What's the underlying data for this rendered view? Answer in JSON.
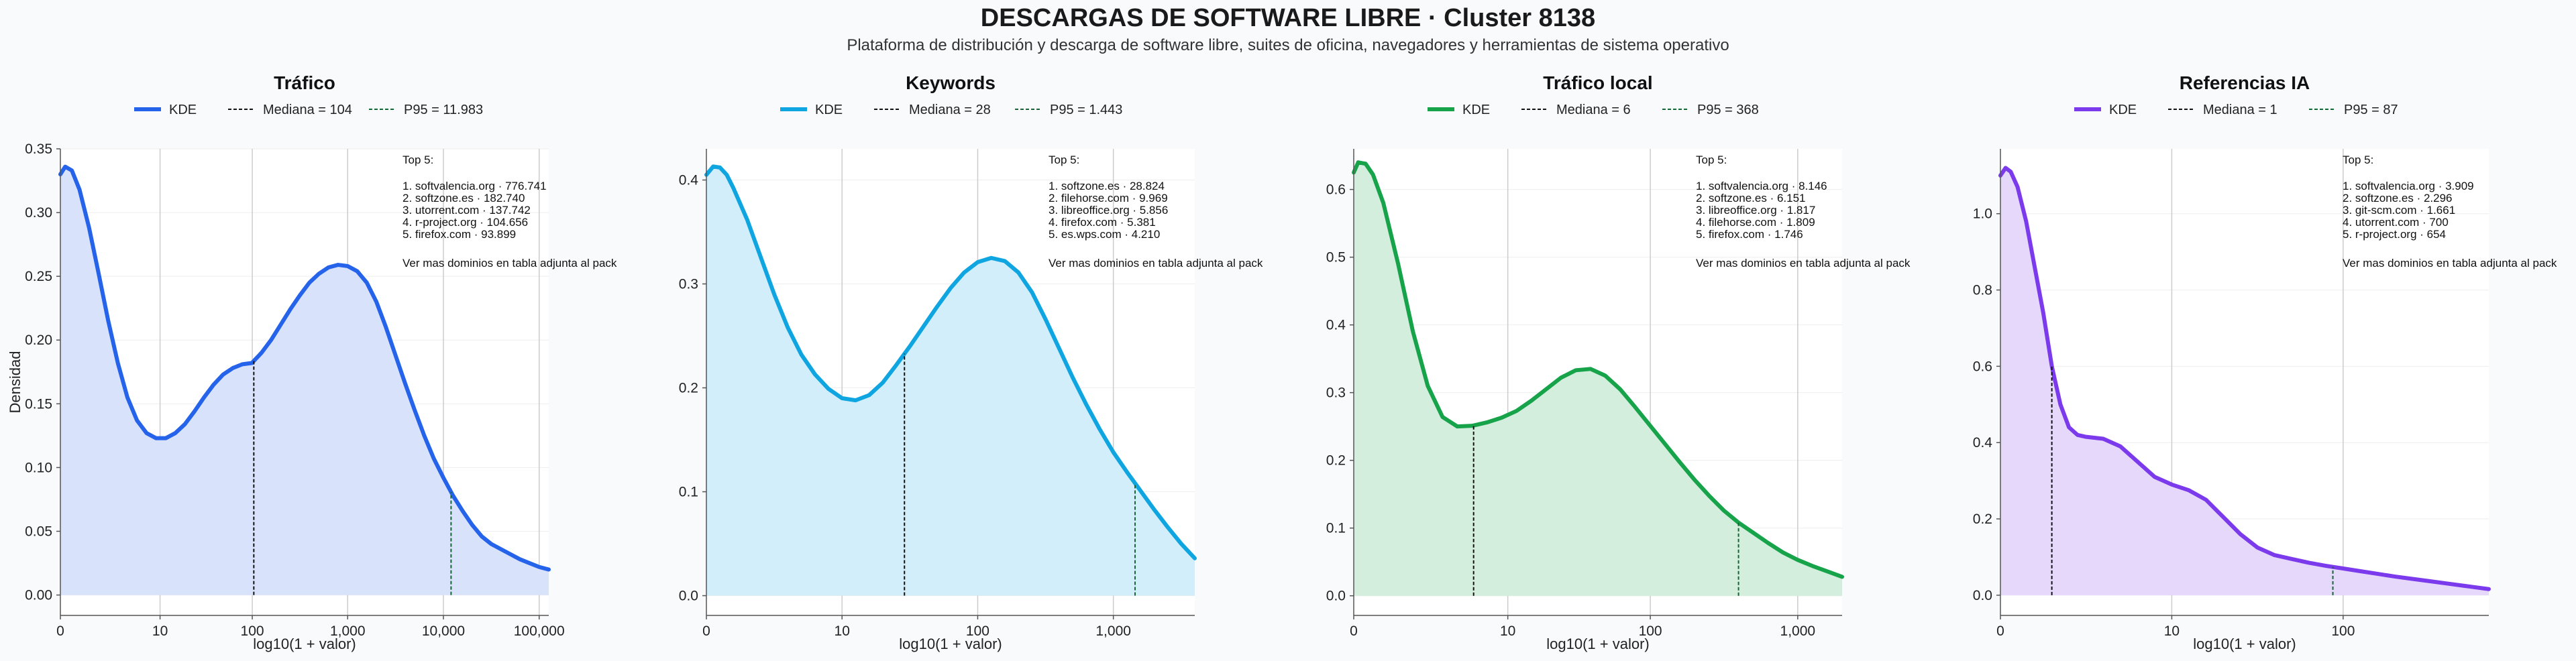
{
  "title": "DESCARGAS DE SOFTWARE LIBRE · Cluster 8138",
  "subtitle": "Plataforma de distribución y descarga de software libre, suites de oficina, navegadores y herramientas de sistema operativo",
  "ylabel": "Densidad",
  "legend_kde": "KDE",
  "note": "Ver mas dominios en tabla adjunta al pack",
  "top_label": "Top 5:",
  "chart_data": [
    {
      "type": "area",
      "title": "Tráfico",
      "xlabel": "log10(1 + valor)",
      "ylabel": "Densidad",
      "color": "#2563eb",
      "fill": "#d8e2fb",
      "xlim": [
        0,
        5.1
      ],
      "ylim": [
        -0.016,
        0.35
      ],
      "x_ticks": [
        {
          "v": 0,
          "label": "0"
        },
        {
          "v": 1.041,
          "label": "10"
        },
        {
          "v": 2.004,
          "label": "100"
        },
        {
          "v": 3.0,
          "label": "1,000"
        },
        {
          "v": 4.0,
          "label": "10,000"
        },
        {
          "v": 5.0,
          "label": "100,000"
        }
      ],
      "y_ticks": [
        {
          "v": 0,
          "label": "0.00"
        },
        {
          "v": 0.05,
          "label": "0.05"
        },
        {
          "v": 0.1,
          "label": "0.10"
        },
        {
          "v": 0.15,
          "label": "0.15"
        },
        {
          "v": 0.2,
          "label": "0.20"
        },
        {
          "v": 0.25,
          "label": "0.25"
        },
        {
          "v": 0.3,
          "label": "0.30"
        },
        {
          "v": 0.35,
          "label": "0.35"
        }
      ],
      "x": [
        0,
        0.05,
        0.12,
        0.2,
        0.3,
        0.4,
        0.5,
        0.6,
        0.7,
        0.8,
        0.9,
        1.0,
        1.1,
        1.2,
        1.3,
        1.4,
        1.5,
        1.6,
        1.7,
        1.8,
        1.9,
        2.0,
        2.1,
        2.2,
        2.3,
        2.4,
        2.5,
        2.6,
        2.7,
        2.8,
        2.9,
        3.0,
        3.1,
        3.2,
        3.3,
        3.4,
        3.5,
        3.6,
        3.7,
        3.8,
        3.9,
        4.0,
        4.1,
        4.2,
        4.3,
        4.4,
        4.5,
        4.6,
        4.7,
        4.8,
        4.9,
        5.0,
        5.1
      ],
      "y": [
        0.33,
        0.336,
        0.333,
        0.318,
        0.288,
        0.252,
        0.215,
        0.182,
        0.155,
        0.137,
        0.127,
        0.123,
        0.123,
        0.127,
        0.134,
        0.144,
        0.155,
        0.165,
        0.173,
        0.178,
        0.181,
        0.182,
        0.19,
        0.2,
        0.212,
        0.224,
        0.235,
        0.245,
        0.252,
        0.257,
        0.259,
        0.258,
        0.254,
        0.245,
        0.23,
        0.21,
        0.188,
        0.166,
        0.145,
        0.125,
        0.107,
        0.092,
        0.078,
        0.066,
        0.055,
        0.046,
        0.04,
        0.036,
        0.032,
        0.028,
        0.025,
        0.022,
        0.02
      ],
      "median": {
        "label": "Mediana = 104",
        "x": 2.02
      },
      "p95": {
        "label": "P95 = 11.983",
        "x": 4.08
      },
      "top5": [
        "1. softvalencia.org · 776.741",
        "2. softzone.es · 182.740",
        "3. utorrent.com · 137.742",
        "4. r-project.org · 104.656",
        "5. firefox.com · 93.899"
      ]
    },
    {
      "type": "area",
      "title": "Keywords",
      "xlabel": "log10(1 + valor)",
      "ylabel": "",
      "color": "#0ea5e0",
      "fill": "#d2eefb",
      "xlim": [
        0,
        3.6
      ],
      "ylim": [
        -0.019,
        0.43
      ],
      "x_ticks": [
        {
          "v": 0,
          "label": "0"
        },
        {
          "v": 1.0,
          "label": "10"
        },
        {
          "v": 2.0,
          "label": "100"
        },
        {
          "v": 3.0,
          "label": "1,000"
        }
      ],
      "y_ticks": [
        {
          "v": 0,
          "label": "0.0"
        },
        {
          "v": 0.1,
          "label": "0.1"
        },
        {
          "v": 0.2,
          "label": "0.2"
        },
        {
          "v": 0.3,
          "label": "0.3"
        },
        {
          "v": 0.4,
          "label": "0.4"
        }
      ],
      "x": [
        0,
        0.05,
        0.1,
        0.15,
        0.2,
        0.3,
        0.4,
        0.5,
        0.6,
        0.7,
        0.8,
        0.9,
        1.0,
        1.1,
        1.2,
        1.3,
        1.4,
        1.5,
        1.6,
        1.7,
        1.8,
        1.9,
        2.0,
        2.1,
        2.2,
        2.3,
        2.4,
        2.5,
        2.6,
        2.7,
        2.8,
        2.9,
        3.0,
        3.1,
        3.2,
        3.3,
        3.4,
        3.5,
        3.6
      ],
      "y": [
        0.405,
        0.413,
        0.412,
        0.405,
        0.392,
        0.362,
        0.326,
        0.29,
        0.258,
        0.232,
        0.213,
        0.199,
        0.19,
        0.188,
        0.193,
        0.205,
        0.222,
        0.24,
        0.259,
        0.278,
        0.296,
        0.311,
        0.321,
        0.325,
        0.322,
        0.311,
        0.292,
        0.266,
        0.238,
        0.21,
        0.184,
        0.16,
        0.138,
        0.119,
        0.101,
        0.083,
        0.066,
        0.05,
        0.036
      ],
      "median": {
        "label": "Mediana = 28",
        "x": 1.46
      },
      "p95": {
        "label": "P95 = 1.443",
        "x": 3.16
      },
      "top5": [
        "1. softzone.es · 28.824",
        "2. filehorse.com · 9.969",
        "3. libreoffice.org · 5.856",
        "4. firefox.com · 5.381",
        "5. es.wps.com · 4.210"
      ]
    },
    {
      "type": "area",
      "title": "Tráfico local",
      "xlabel": "log10(1 + valor)",
      "ylabel": "",
      "color": "#16a34a",
      "fill": "#d3eedd",
      "xlim": [
        0,
        3.3
      ],
      "ylim": [
        -0.029,
        0.66
      ],
      "x_ticks": [
        {
          "v": 0,
          "label": "0"
        },
        {
          "v": 1.041,
          "label": "10"
        },
        {
          "v": 2.004,
          "label": "100"
        },
        {
          "v": 3.0,
          "label": "1,000"
        }
      ],
      "y_ticks": [
        {
          "v": 0,
          "label": "0.0"
        },
        {
          "v": 0.1,
          "label": "0.1"
        },
        {
          "v": 0.2,
          "label": "0.2"
        },
        {
          "v": 0.3,
          "label": "0.3"
        },
        {
          "v": 0.4,
          "label": "0.4"
        },
        {
          "v": 0.5,
          "label": "0.5"
        },
        {
          "v": 0.6,
          "label": "0.6"
        }
      ],
      "x": [
        0,
        0.03,
        0.08,
        0.13,
        0.2,
        0.3,
        0.4,
        0.5,
        0.6,
        0.7,
        0.8,
        0.9,
        1.0,
        1.1,
        1.2,
        1.3,
        1.4,
        1.5,
        1.6,
        1.7,
        1.8,
        1.9,
        2.0,
        2.1,
        2.2,
        2.3,
        2.4,
        2.5,
        2.6,
        2.7,
        2.8,
        2.9,
        3.0,
        3.1,
        3.2,
        3.3
      ],
      "y": [
        0.625,
        0.64,
        0.638,
        0.622,
        0.58,
        0.49,
        0.39,
        0.31,
        0.264,
        0.25,
        0.251,
        0.256,
        0.263,
        0.273,
        0.288,
        0.305,
        0.322,
        0.333,
        0.335,
        0.325,
        0.305,
        0.279,
        0.252,
        0.225,
        0.198,
        0.172,
        0.148,
        0.126,
        0.108,
        0.093,
        0.078,
        0.064,
        0.053,
        0.044,
        0.036,
        0.028
      ],
      "median": {
        "label": "Mediana = 6",
        "x": 0.81
      },
      "p95": {
        "label": "P95 = 368",
        "x": 2.6
      },
      "top5": [
        "1. softvalencia.org · 8.146",
        "2. softzone.es · 6.151",
        "3. libreoffice.org · 1.817",
        "4. filehorse.com · 1.809",
        "5. firefox.com · 1.746"
      ]
    },
    {
      "type": "area",
      "title": "Referencias IA",
      "xlabel": "log10(1 + valor)",
      "ylabel": "",
      "color": "#7c3aed",
      "fill": "#e6d8fb",
      "xlim": [
        0,
        2.85
      ],
      "ylim": [
        -0.053,
        1.17
      ],
      "x_ticks": [
        {
          "v": 0,
          "label": "0"
        },
        {
          "v": 1.0,
          "label": "10"
        },
        {
          "v": 2.0,
          "label": "100"
        }
      ],
      "y_ticks": [
        {
          "v": 0,
          "label": "0.0"
        },
        {
          "v": 0.2,
          "label": "0.2"
        },
        {
          "v": 0.4,
          "label": "0.4"
        },
        {
          "v": 0.6,
          "label": "0.6"
        },
        {
          "v": 0.8,
          "label": "0.8"
        },
        {
          "v": 1.0,
          "label": "1.0"
        }
      ],
      "x": [
        0,
        0.03,
        0.06,
        0.1,
        0.15,
        0.2,
        0.25,
        0.3,
        0.35,
        0.4,
        0.45,
        0.5,
        0.6,
        0.7,
        0.8,
        0.9,
        1.0,
        1.1,
        1.2,
        1.3,
        1.4,
        1.5,
        1.6,
        1.7,
        1.8,
        1.9,
        2.0,
        2.1,
        2.2,
        2.3,
        2.4,
        2.5,
        2.6,
        2.7,
        2.85
      ],
      "y": [
        1.1,
        1.12,
        1.11,
        1.07,
        0.98,
        0.86,
        0.74,
        0.6,
        0.5,
        0.44,
        0.42,
        0.415,
        0.41,
        0.39,
        0.35,
        0.31,
        0.29,
        0.275,
        0.25,
        0.205,
        0.16,
        0.125,
        0.105,
        0.095,
        0.085,
        0.077,
        0.07,
        0.063,
        0.056,
        0.049,
        0.043,
        0.037,
        0.031,
        0.025,
        0.016
      ],
      "median": {
        "label": "Mediana = 1",
        "x": 0.3
      },
      "p95": {
        "label": "P95 = 87",
        "x": 1.94
      },
      "top5": [
        "1. softvalencia.org · 3.909",
        "2. softzone.es · 2.296",
        "3. git-scm.com · 1.661",
        "4. utorrent.com · 700",
        "5. r-project.org · 654"
      ]
    }
  ]
}
